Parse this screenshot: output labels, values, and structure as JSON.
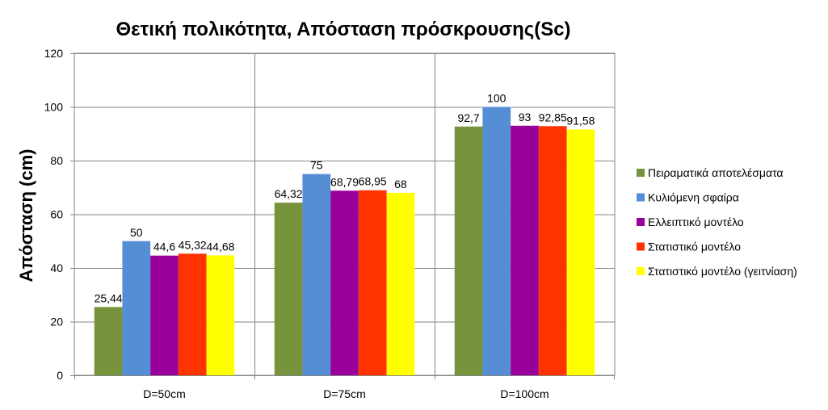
{
  "chart_data": {
    "type": "bar",
    "title": "Θετική πολικότητα, Απόσταση πρόσκρουσης(Sc)",
    "xlabel": "",
    "ylabel": "Απόσταση (cm)",
    "ylim": [
      0,
      120
    ],
    "yticks": [
      0,
      20,
      40,
      60,
      80,
      100,
      120
    ],
    "grid": true,
    "legend_position": "right",
    "categories": [
      "D=50cm",
      "D=75cm",
      "D=100cm"
    ],
    "series": [
      {
        "name": "Πειραματικά αποτελέσματα",
        "color": "#77933C",
        "values": [
          25.44,
          64.32,
          92.7
        ],
        "labels": [
          "25,44",
          "64,32",
          "92,7"
        ]
      },
      {
        "name": "Κυλιόμενη σφαίρα",
        "color": "#558ED5",
        "values": [
          50,
          75,
          100
        ],
        "labels": [
          "50",
          "75",
          "100"
        ]
      },
      {
        "name": "Ελλειπτικό μοντέλο",
        "color": "#990099",
        "values": [
          44.6,
          68.79,
          93
        ],
        "labels": [
          "44,6",
          "68,79",
          "93"
        ]
      },
      {
        "name": "Στατιστικό μοντέλο",
        "color": "#FF3300",
        "values": [
          45.32,
          68.95,
          92.85
        ],
        "labels": [
          "45,32",
          "68,95",
          "92,85"
        ]
      },
      {
        "name": "Στατιστικό μοντέλο (γειτνίαση)",
        "color": "#FFFF00",
        "values": [
          44.68,
          68,
          91.58
        ],
        "labels": [
          "44,68",
          "68",
          "91,58"
        ]
      }
    ]
  }
}
